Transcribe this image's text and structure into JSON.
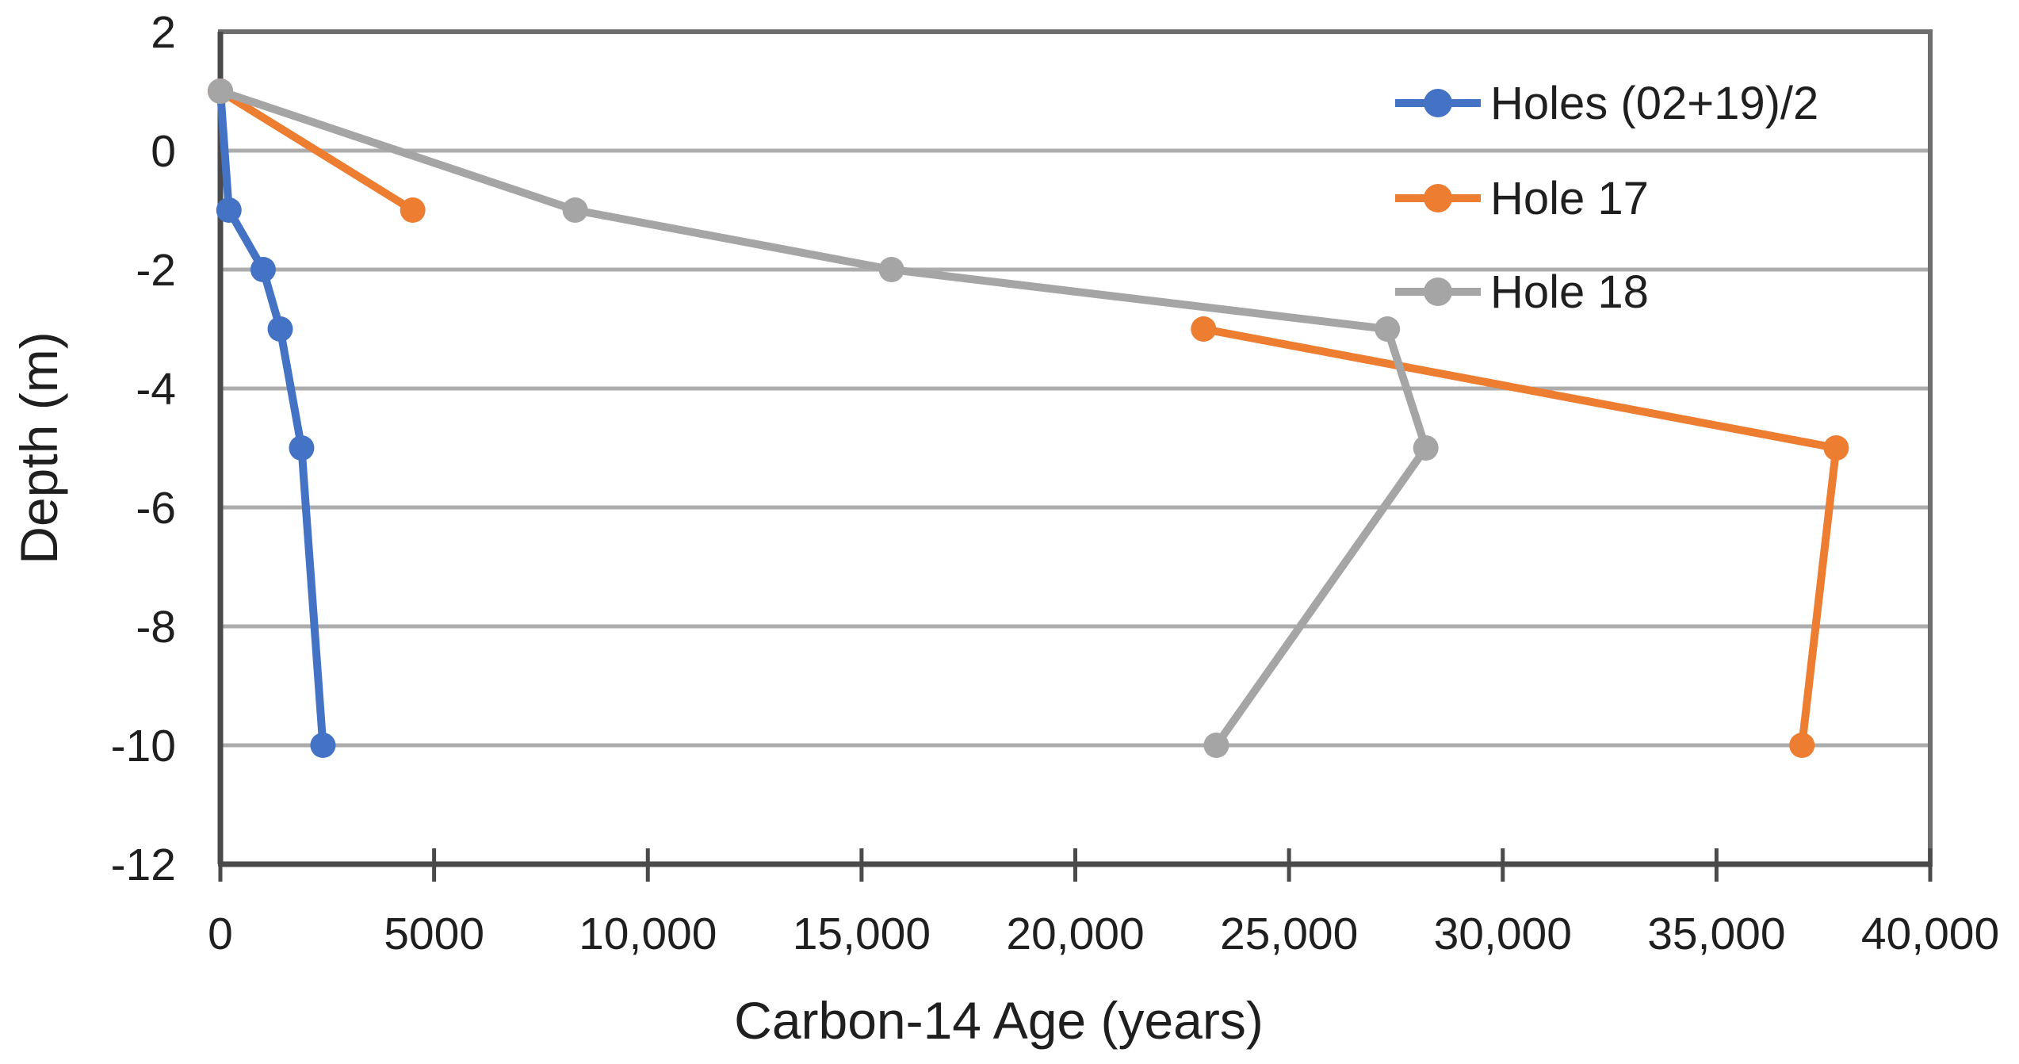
{
  "chart_data": {
    "type": "line",
    "title": "",
    "xlabel": "Carbon-14 Age (years)",
    "ylabel": "Depth (m)",
    "xlim": [
      0,
      40000
    ],
    "ylim": [
      -12,
      2
    ],
    "grid": "horizontal-only",
    "legend_position": "top-right-inside",
    "x_ticks": {
      "values": [
        0,
        5000,
        10000,
        15000,
        20000,
        25000,
        30000,
        35000,
        40000
      ],
      "labels": [
        "0",
        "5000",
        "10,000",
        "15,000",
        "20,000",
        "25,000",
        "30,000",
        "35,000",
        "40,000"
      ]
    },
    "y_ticks": {
      "values": [
        2,
        0,
        -2,
        -4,
        -6,
        -8,
        -10,
        -12
      ],
      "labels": [
        "2",
        "0",
        "-2",
        "-4",
        "-6",
        "-8",
        "-10",
        "-12"
      ]
    },
    "series": [
      {
        "name": "Holes (02+19)/2",
        "color": "#4472C4",
        "points": [
          [
            0,
            1
          ],
          [
            200,
            -1
          ],
          [
            1000,
            -2
          ],
          [
            1400,
            -3
          ],
          [
            1900,
            -5
          ],
          [
            2400,
            -10
          ]
        ]
      },
      {
        "name": "Hole 17",
        "color": "#ED7D31",
        "points": [
          [
            0,
            1
          ],
          [
            4500,
            -1
          ],
          null,
          [
            23000,
            -3
          ],
          [
            37800,
            -5
          ],
          [
            37000,
            -10
          ]
        ]
      },
      {
        "name": "Hole 18",
        "color": "#A5A5A5",
        "points": [
          [
            0,
            1
          ],
          [
            8300,
            -1
          ],
          [
            15700,
            -2
          ],
          [
            27300,
            -3
          ],
          [
            28200,
            -5
          ],
          [
            23300,
            -10
          ]
        ]
      }
    ],
    "colors": {
      "background": "#ffffff",
      "gridline": "#ACACAC",
      "plot_border": "#6E6E6E",
      "axis_line": "#4A4A4A",
      "text": "#1f1f1f"
    }
  }
}
